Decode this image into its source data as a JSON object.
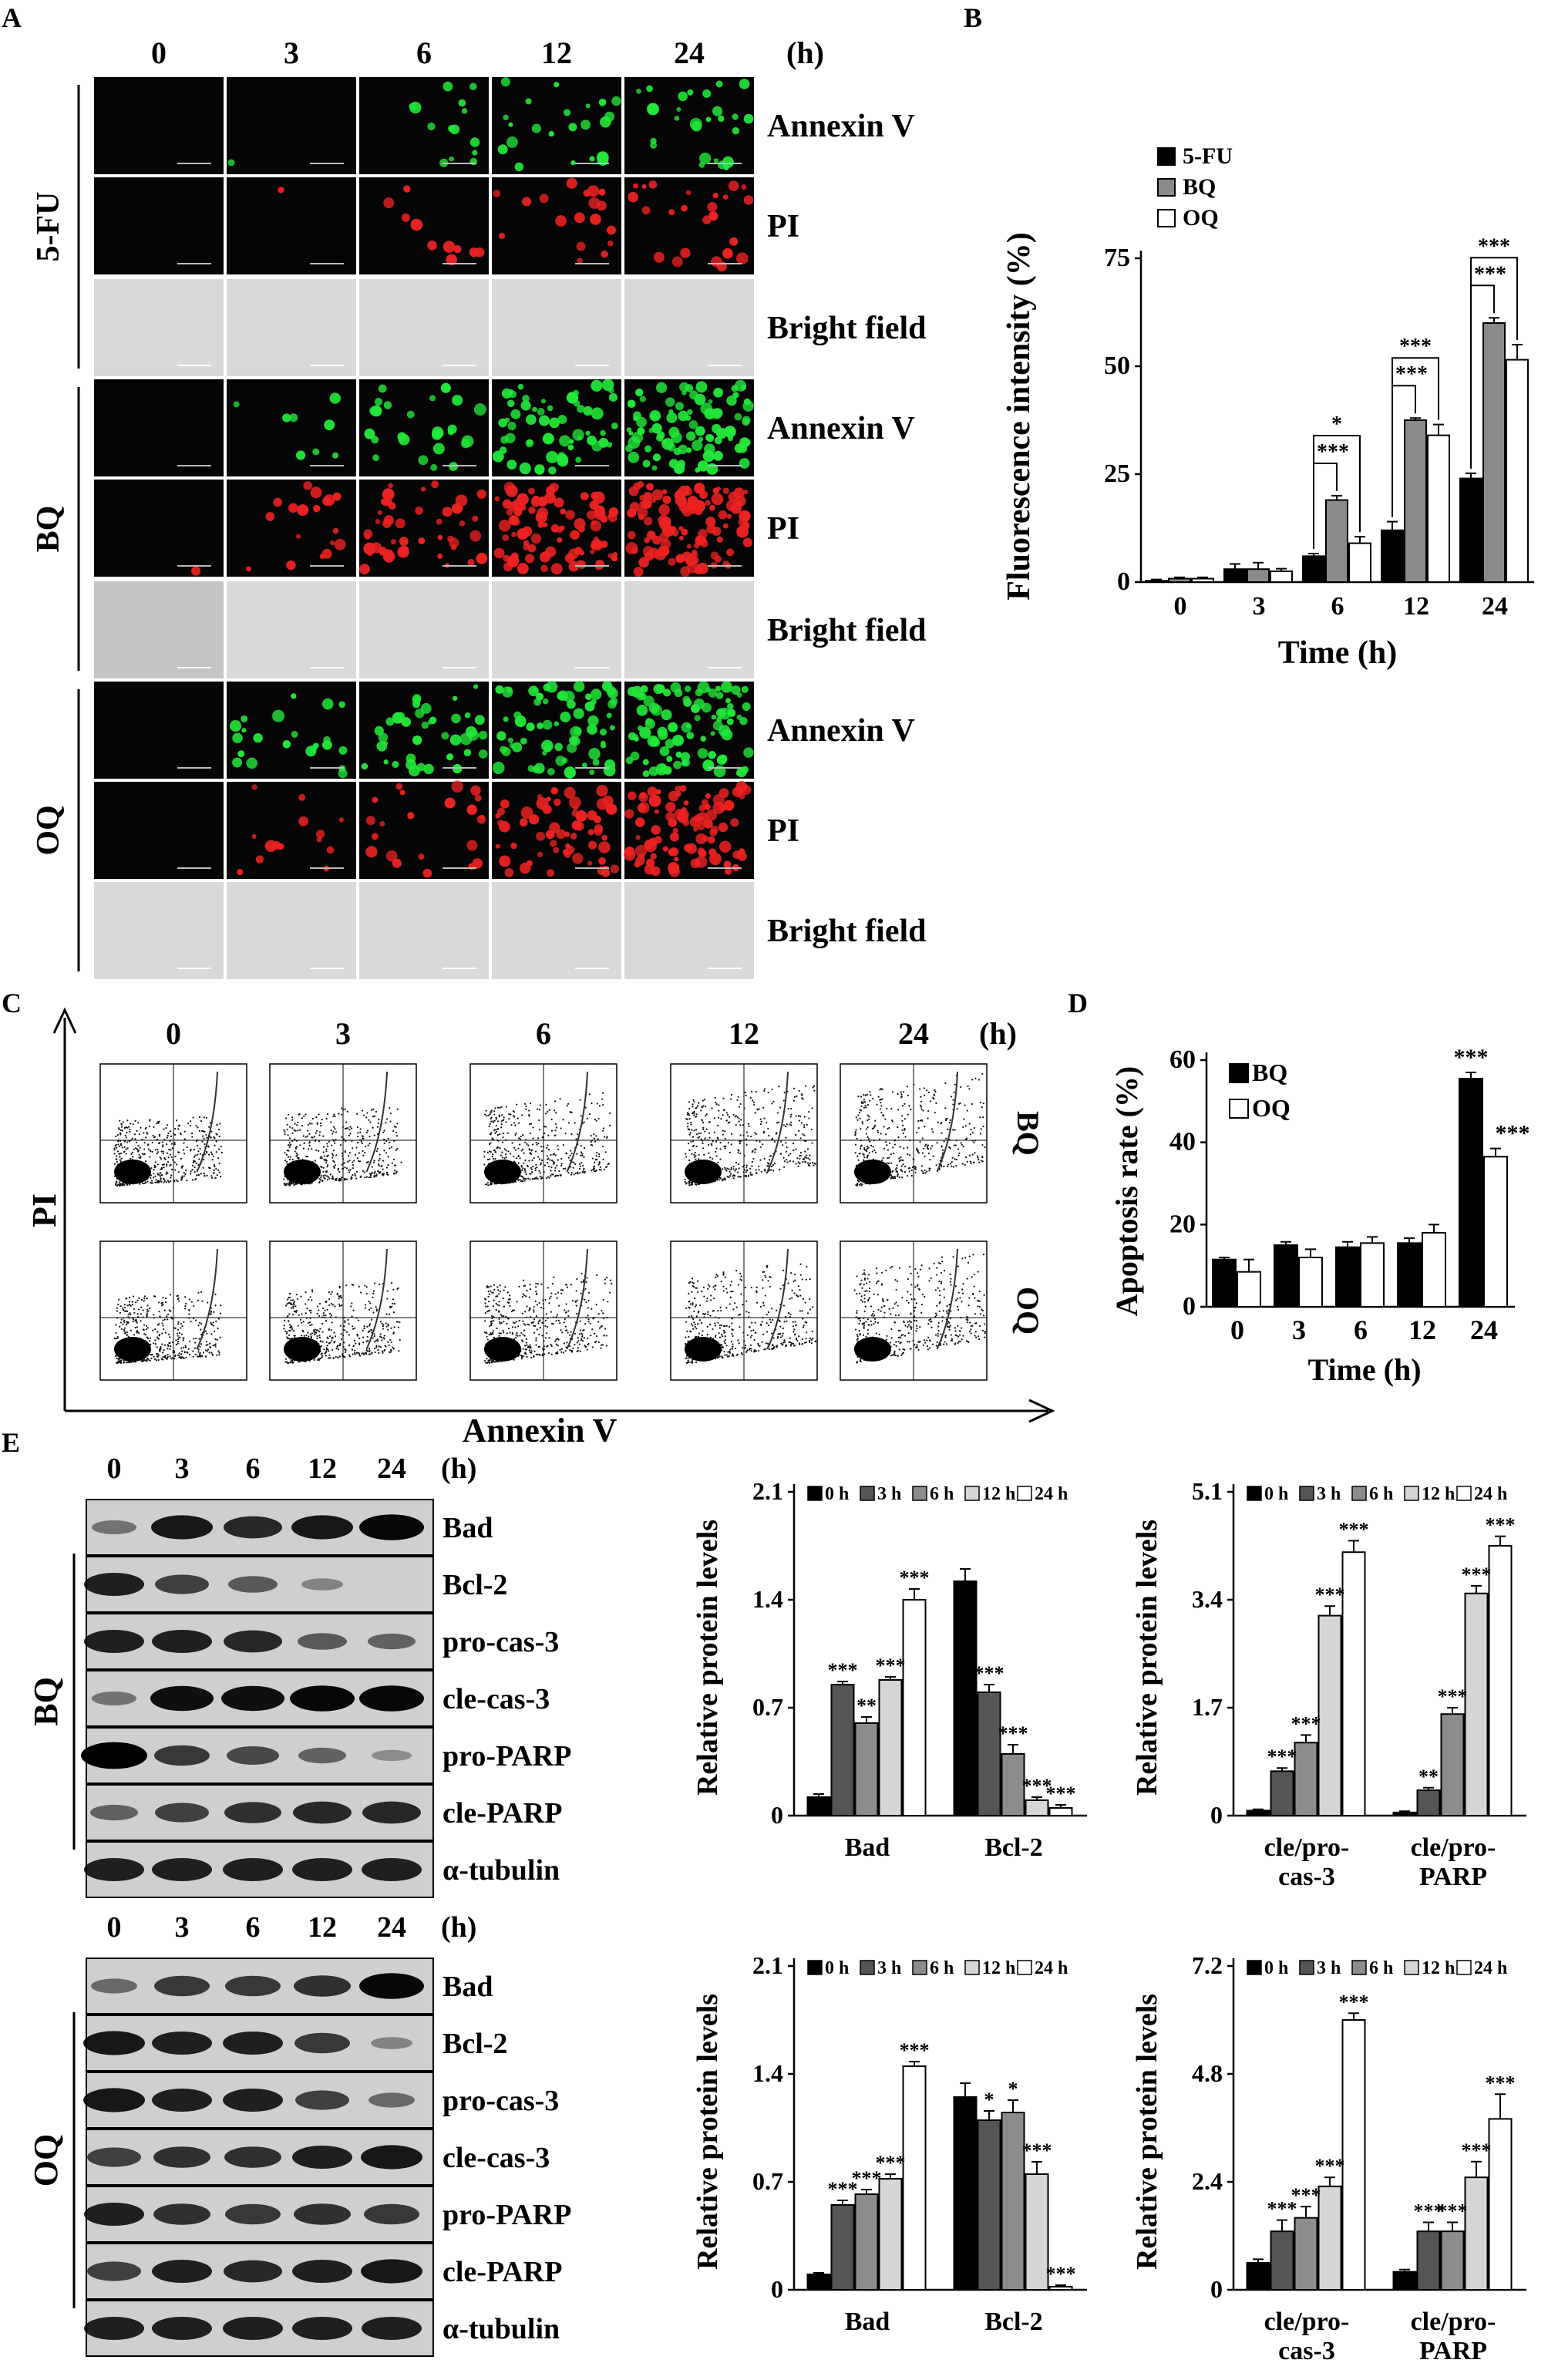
{
  "panel_labels": {
    "a": "A",
    "b": "B",
    "c": "C",
    "d": "D",
    "e": "E"
  },
  "panel_a": {
    "time_headers": [
      "0",
      "3",
      "6",
      "12",
      "24"
    ],
    "unit": "(h)",
    "groups": [
      "5-FU",
      "BQ",
      "OQ"
    ],
    "stains": [
      "Annexin V",
      "PI",
      "Bright field"
    ],
    "colors": {
      "annexin": "#22e83a",
      "pi": "#ee2222",
      "bright": "#d9d9d9",
      "dark": "#050505"
    },
    "annexin_density": [
      [
        0,
        1,
        14,
        22,
        26
      ],
      [
        0,
        8,
        26,
        60,
        90
      ],
      [
        0,
        22,
        40,
        70,
        95
      ]
    ],
    "pi_density": [
      [
        0,
        1,
        10,
        18,
        24
      ],
      [
        1,
        18,
        45,
        90,
        110
      ],
      [
        0,
        14,
        22,
        60,
        95
      ]
    ]
  },
  "panel_b": {
    "ylabel": "Fluorescence intensity (%)",
    "xlabel": "Time (h)",
    "legend": [
      "5-FU",
      "BQ",
      "OQ"
    ],
    "sig_labels": [
      "*",
      "***",
      "***",
      "***",
      "***",
      "***"
    ],
    "chart_data": {
      "type": "bar",
      "categories": [
        "0",
        "3",
        "6",
        "12",
        "24"
      ],
      "series": [
        {
          "name": "5-FU",
          "values": [
            0.3,
            3,
            6,
            12,
            24
          ],
          "errors": [
            0.3,
            1.2,
            0.6,
            2,
            1.2
          ]
        },
        {
          "name": "BQ",
          "values": [
            0.8,
            3,
            19,
            37.5,
            60
          ],
          "errors": [
            0.3,
            1.5,
            1,
            0.5,
            1.2
          ]
        },
        {
          "name": "OQ",
          "values": [
            0.8,
            2.5,
            9,
            34,
            51.5
          ],
          "errors": [
            0.3,
            0.6,
            1.5,
            2.5,
            3.5
          ]
        }
      ],
      "yticks": [
        "0",
        "25",
        "50",
        "75"
      ],
      "ylim": [
        0,
        75
      ]
    }
  },
  "panel_c": {
    "time_headers": [
      "0",
      "3",
      "6",
      "12",
      "24"
    ],
    "unit": "(h)",
    "rows": [
      "BQ",
      "OQ"
    ],
    "ylabel": "PI",
    "xlabel": "Annexin V"
  },
  "panel_d": {
    "ylabel": "Apoptosis rate (%)",
    "xlabel": "Time (h)",
    "legend": [
      "BQ",
      "OQ"
    ],
    "sig_labels": [
      "***",
      "***"
    ],
    "chart_data": {
      "type": "bar",
      "categories": [
        "0",
        "3",
        "6",
        "12",
        "24"
      ],
      "series": [
        {
          "name": "BQ",
          "values": [
            11.5,
            15,
            14.5,
            15.5,
            55.5
          ],
          "errors": [
            0.5,
            0.8,
            1.3,
            1.2,
            1.5
          ]
        },
        {
          "name": "OQ",
          "values": [
            8.5,
            12,
            15.5,
            18,
            36.5
          ],
          "errors": [
            3,
            2,
            1.5,
            2,
            2
          ]
        }
      ],
      "yticks": [
        "0",
        "20",
        "40",
        "60"
      ],
      "ylim": [
        0,
        60
      ]
    }
  },
  "panel_e": {
    "time_headers": [
      "0",
      "3",
      "6",
      "12",
      "24"
    ],
    "unit": "(h)",
    "proteins": [
      "Bad",
      "Bcl-2",
      "pro-cas-3",
      "cle-cas-3",
      "pro-PARP",
      "cle-PARP",
      "α-tubulin"
    ],
    "groups": [
      "BQ",
      "OQ"
    ],
    "legend": [
      "0 h",
      "3 h",
      "6 h",
      "12 h",
      "24 h"
    ],
    "ylabel": "Relative protein levels",
    "band_intensity": {
      "BQ": [
        [
          0.25,
          0.8,
          0.7,
          0.8,
          0.9
        ],
        [
          0.75,
          0.55,
          0.4,
          0.15,
          0.0
        ],
        [
          0.75,
          0.75,
          0.7,
          0.4,
          0.35
        ],
        [
          0.25,
          0.85,
          0.85,
          0.9,
          0.9
        ],
        [
          0.95,
          0.6,
          0.5,
          0.35,
          0.1
        ],
        [
          0.35,
          0.55,
          0.65,
          0.7,
          0.7
        ],
        [
          0.75,
          0.75,
          0.75,
          0.75,
          0.75
        ]
      ],
      "OQ": [
        [
          0.3,
          0.6,
          0.6,
          0.65,
          0.9
        ],
        [
          0.8,
          0.75,
          0.75,
          0.6,
          0.15
        ],
        [
          0.8,
          0.75,
          0.75,
          0.55,
          0.3
        ],
        [
          0.55,
          0.65,
          0.65,
          0.75,
          0.8
        ],
        [
          0.75,
          0.65,
          0.6,
          0.65,
          0.6
        ],
        [
          0.55,
          0.75,
          0.7,
          0.75,
          0.8
        ],
        [
          0.75,
          0.75,
          0.75,
          0.75,
          0.75
        ]
      ]
    },
    "charts": [
      {
        "type": "bar",
        "categories": [
          "Bad",
          "Bcl-2"
        ],
        "series": [
          {
            "name": "0 h",
            "values": [
              0.12,
              1.52
            ],
            "errors": [
              0.02,
              0.08
            ]
          },
          {
            "name": "3 h",
            "values": [
              0.85,
              0.8
            ],
            "errors": [
              0.02,
              0.05
            ]
          },
          {
            "name": "6 h",
            "values": [
              0.6,
              0.4
            ],
            "errors": [
              0.04,
              0.06
            ]
          },
          {
            "name": "12 h",
            "values": [
              0.88,
              0.1
            ],
            "errors": [
              0.02,
              0.02
            ]
          },
          {
            "name": "24 h",
            "values": [
              1.4,
              0.05
            ],
            "errors": [
              0.07,
              0.02
            ]
          }
        ],
        "ylim": [
          0,
          2.1
        ],
        "yticks": [
          "0",
          "0.7",
          "1.4",
          "2.1"
        ],
        "sig": [
          [
            "",
            "***",
            "**",
            "***",
            "***"
          ],
          [
            "",
            "***",
            "***",
            "***",
            "***"
          ]
        ]
      },
      {
        "type": "bar",
        "categories": [
          "cle/pro-cas-3",
          "cle/pro-PARP"
        ],
        "category_lines": [
          [
            "cle/pro-",
            "cas-3"
          ],
          [
            "cle/pro-",
            "PARP"
          ]
        ],
        "series": [
          {
            "name": "0 h",
            "values": [
              0.08,
              0.05
            ],
            "errors": [
              0.02,
              0.02
            ]
          },
          {
            "name": "3 h",
            "values": [
              0.7,
              0.4
            ],
            "errors": [
              0.05,
              0.04
            ]
          },
          {
            "name": "6 h",
            "values": [
              1.15,
              1.6
            ],
            "errors": [
              0.12,
              0.1
            ]
          },
          {
            "name": "12 h",
            "values": [
              3.15,
              3.5
            ],
            "errors": [
              0.15,
              0.12
            ]
          },
          {
            "name": "24 h",
            "values": [
              4.15,
              4.25
            ],
            "errors": [
              0.18,
              0.15
            ]
          }
        ],
        "ylim": [
          0,
          5.1
        ],
        "yticks": [
          "0",
          "1.7",
          "3.4",
          "5.1"
        ],
        "sig": [
          [
            "",
            "***",
            "***",
            "***",
            "***"
          ],
          [
            "",
            "**",
            "***",
            "***",
            "***"
          ]
        ]
      },
      {
        "type": "bar",
        "categories": [
          "Bad",
          "Bcl-2"
        ],
        "series": [
          {
            "name": "0 h",
            "values": [
              0.1,
              1.25
            ],
            "errors": [
              0.01,
              0.09
            ]
          },
          {
            "name": "3 h",
            "values": [
              0.55,
              1.1
            ],
            "errors": [
              0.03,
              0.06
            ]
          },
          {
            "name": "6 h",
            "values": [
              0.62,
              1.15
            ],
            "errors": [
              0.03,
              0.08
            ]
          },
          {
            "name": "12 h",
            "values": [
              0.72,
              0.75
            ],
            "errors": [
              0.03,
              0.08
            ]
          },
          {
            "name": "24 h",
            "values": [
              1.45,
              0.02
            ],
            "errors": [
              0.03,
              0.01
            ]
          }
        ],
        "ylim": [
          0,
          2.1
        ],
        "yticks": [
          "0",
          "0.7",
          "1.4",
          "2.1"
        ],
        "sig": [
          [
            "",
            "***",
            "***",
            "***",
            "***"
          ],
          [
            "",
            "*",
            "*",
            "***",
            "***"
          ]
        ]
      },
      {
        "type": "bar",
        "categories": [
          "cle/pro-cas-3",
          "cle/pro-PARP"
        ],
        "category_lines": [
          [
            "cle/pro-",
            "cas-3"
          ],
          [
            "cle/pro-",
            "PARP"
          ]
        ],
        "series": [
          {
            "name": "0 h",
            "values": [
              0.6,
              0.4
            ],
            "errors": [
              0.08,
              0.05
            ]
          },
          {
            "name": "3 h",
            "values": [
              1.3,
              1.3
            ],
            "errors": [
              0.25,
              0.2
            ]
          },
          {
            "name": "6 h",
            "values": [
              1.6,
              1.3
            ],
            "errors": [
              0.25,
              0.2
            ]
          },
          {
            "name": "12 h",
            "values": [
              2.3,
              2.5
            ],
            "errors": [
              0.2,
              0.35
            ]
          },
          {
            "name": "24 h",
            "values": [
              6.0,
              3.8
            ],
            "errors": [
              0.15,
              0.55
            ]
          }
        ],
        "ylim": [
          0,
          7.2
        ],
        "yticks": [
          "0",
          "2.4",
          "4.8",
          "7.2"
        ],
        "sig": [
          [
            "",
            "***",
            "***",
            "***",
            "***"
          ],
          [
            "",
            "***",
            "***",
            "***",
            "***"
          ]
        ]
      }
    ]
  }
}
